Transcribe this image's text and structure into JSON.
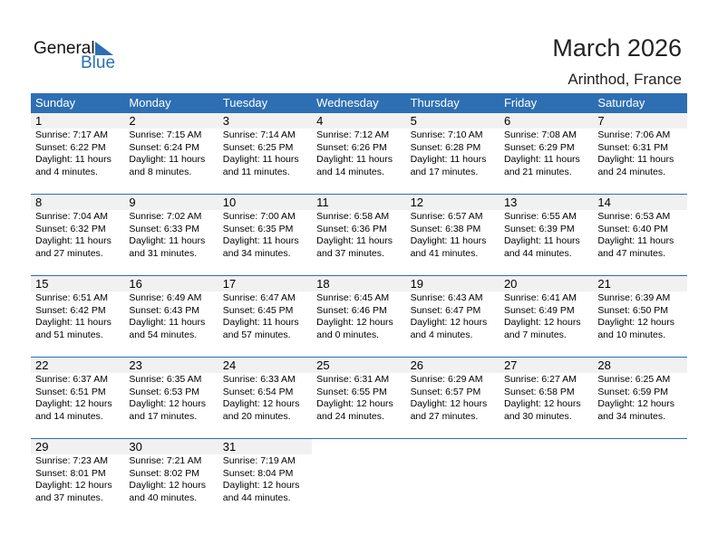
{
  "logo": {
    "general": "General",
    "blue": "Blue"
  },
  "title": "March 2026",
  "location": "Arinthod, France",
  "weekdays": [
    "Sunday",
    "Monday",
    "Tuesday",
    "Wednesday",
    "Thursday",
    "Friday",
    "Saturday"
  ],
  "weeks": [
    [
      {
        "d": "1",
        "rise": "Sunrise: 7:17 AM",
        "set": "Sunset: 6:22 PM",
        "dl": "Daylight: 11 hours",
        "dm": "and 4 minutes."
      },
      {
        "d": "2",
        "rise": "Sunrise: 7:15 AM",
        "set": "Sunset: 6:24 PM",
        "dl": "Daylight: 11 hours",
        "dm": "and 8 minutes."
      },
      {
        "d": "3",
        "rise": "Sunrise: 7:14 AM",
        "set": "Sunset: 6:25 PM",
        "dl": "Daylight: 11 hours",
        "dm": "and 11 minutes."
      },
      {
        "d": "4",
        "rise": "Sunrise: 7:12 AM",
        "set": "Sunset: 6:26 PM",
        "dl": "Daylight: 11 hours",
        "dm": "and 14 minutes."
      },
      {
        "d": "5",
        "rise": "Sunrise: 7:10 AM",
        "set": "Sunset: 6:28 PM",
        "dl": "Daylight: 11 hours",
        "dm": "and 17 minutes."
      },
      {
        "d": "6",
        "rise": "Sunrise: 7:08 AM",
        "set": "Sunset: 6:29 PM",
        "dl": "Daylight: 11 hours",
        "dm": "and 21 minutes."
      },
      {
        "d": "7",
        "rise": "Sunrise: 7:06 AM",
        "set": "Sunset: 6:31 PM",
        "dl": "Daylight: 11 hours",
        "dm": "and 24 minutes."
      }
    ],
    [
      {
        "d": "8",
        "rise": "Sunrise: 7:04 AM",
        "set": "Sunset: 6:32 PM",
        "dl": "Daylight: 11 hours",
        "dm": "and 27 minutes."
      },
      {
        "d": "9",
        "rise": "Sunrise: 7:02 AM",
        "set": "Sunset: 6:33 PM",
        "dl": "Daylight: 11 hours",
        "dm": "and 31 minutes."
      },
      {
        "d": "10",
        "rise": "Sunrise: 7:00 AM",
        "set": "Sunset: 6:35 PM",
        "dl": "Daylight: 11 hours",
        "dm": "and 34 minutes."
      },
      {
        "d": "11",
        "rise": "Sunrise: 6:58 AM",
        "set": "Sunset: 6:36 PM",
        "dl": "Daylight: 11 hours",
        "dm": "and 37 minutes."
      },
      {
        "d": "12",
        "rise": "Sunrise: 6:57 AM",
        "set": "Sunset: 6:38 PM",
        "dl": "Daylight: 11 hours",
        "dm": "and 41 minutes."
      },
      {
        "d": "13",
        "rise": "Sunrise: 6:55 AM",
        "set": "Sunset: 6:39 PM",
        "dl": "Daylight: 11 hours",
        "dm": "and 44 minutes."
      },
      {
        "d": "14",
        "rise": "Sunrise: 6:53 AM",
        "set": "Sunset: 6:40 PM",
        "dl": "Daylight: 11 hours",
        "dm": "and 47 minutes."
      }
    ],
    [
      {
        "d": "15",
        "rise": "Sunrise: 6:51 AM",
        "set": "Sunset: 6:42 PM",
        "dl": "Daylight: 11 hours",
        "dm": "and 51 minutes."
      },
      {
        "d": "16",
        "rise": "Sunrise: 6:49 AM",
        "set": "Sunset: 6:43 PM",
        "dl": "Daylight: 11 hours",
        "dm": "and 54 minutes."
      },
      {
        "d": "17",
        "rise": "Sunrise: 6:47 AM",
        "set": "Sunset: 6:45 PM",
        "dl": "Daylight: 11 hours",
        "dm": "and 57 minutes."
      },
      {
        "d": "18",
        "rise": "Sunrise: 6:45 AM",
        "set": "Sunset: 6:46 PM",
        "dl": "Daylight: 12 hours",
        "dm": "and 0 minutes."
      },
      {
        "d": "19",
        "rise": "Sunrise: 6:43 AM",
        "set": "Sunset: 6:47 PM",
        "dl": "Daylight: 12 hours",
        "dm": "and 4 minutes."
      },
      {
        "d": "20",
        "rise": "Sunrise: 6:41 AM",
        "set": "Sunset: 6:49 PM",
        "dl": "Daylight: 12 hours",
        "dm": "and 7 minutes."
      },
      {
        "d": "21",
        "rise": "Sunrise: 6:39 AM",
        "set": "Sunset: 6:50 PM",
        "dl": "Daylight: 12 hours",
        "dm": "and 10 minutes."
      }
    ],
    [
      {
        "d": "22",
        "rise": "Sunrise: 6:37 AM",
        "set": "Sunset: 6:51 PM",
        "dl": "Daylight: 12 hours",
        "dm": "and 14 minutes."
      },
      {
        "d": "23",
        "rise": "Sunrise: 6:35 AM",
        "set": "Sunset: 6:53 PM",
        "dl": "Daylight: 12 hours",
        "dm": "and 17 minutes."
      },
      {
        "d": "24",
        "rise": "Sunrise: 6:33 AM",
        "set": "Sunset: 6:54 PM",
        "dl": "Daylight: 12 hours",
        "dm": "and 20 minutes."
      },
      {
        "d": "25",
        "rise": "Sunrise: 6:31 AM",
        "set": "Sunset: 6:55 PM",
        "dl": "Daylight: 12 hours",
        "dm": "and 24 minutes."
      },
      {
        "d": "26",
        "rise": "Sunrise: 6:29 AM",
        "set": "Sunset: 6:57 PM",
        "dl": "Daylight: 12 hours",
        "dm": "and 27 minutes."
      },
      {
        "d": "27",
        "rise": "Sunrise: 6:27 AM",
        "set": "Sunset: 6:58 PM",
        "dl": "Daylight: 12 hours",
        "dm": "and 30 minutes."
      },
      {
        "d": "28",
        "rise": "Sunrise: 6:25 AM",
        "set": "Sunset: 6:59 PM",
        "dl": "Daylight: 12 hours",
        "dm": "and 34 minutes."
      }
    ],
    [
      {
        "d": "29",
        "rise": "Sunrise: 7:23 AM",
        "set": "Sunset: 8:01 PM",
        "dl": "Daylight: 12 hours",
        "dm": "and 37 minutes."
      },
      {
        "d": "30",
        "rise": "Sunrise: 7:21 AM",
        "set": "Sunset: 8:02 PM",
        "dl": "Daylight: 12 hours",
        "dm": "and 40 minutes."
      },
      {
        "d": "31",
        "rise": "Sunrise: 7:19 AM",
        "set": "Sunset: 8:04 PM",
        "dl": "Daylight: 12 hours",
        "dm": "and 44 minutes."
      }
    ]
  ]
}
